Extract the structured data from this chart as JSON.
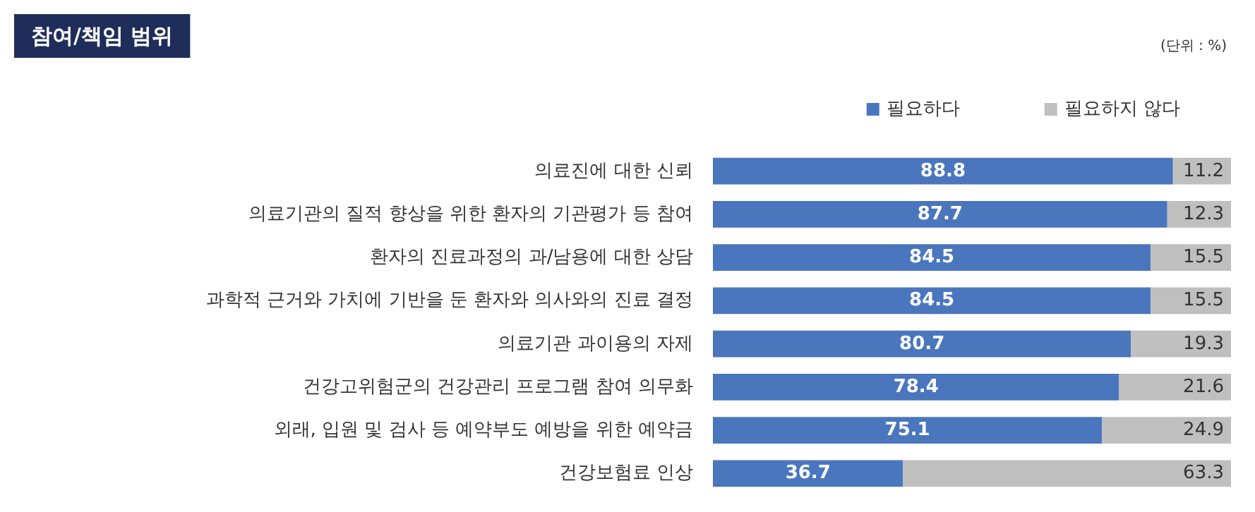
{
  "chart_data": {
    "type": "bar",
    "orientation": "horizontal",
    "stacked": true,
    "title": "참여/책임 범위",
    "annotations": [
      "(단위 : %)"
    ],
    "categories": [
      "의료진에 대한 신뢰",
      "의료기관의 질적 향상을 위한 환자의 기관평가 등 참여",
      "환자의 진료과정의 과/남용에 대한 상담",
      "과학적 근거와 가치에 기반을 둔 환자와 의사와의 진료 결정",
      "의료기관 과이용의 자제",
      "건강고위험군의 건강관리 프로그램 참여 의무화",
      "외래, 입원 및 검사 등 예약부도 예방을 위한 예약금",
      "건강보험료 인상"
    ],
    "series": [
      {
        "name": "필요하다",
        "color": "#4a76bd",
        "values": [
          88.8,
          87.7,
          84.5,
          84.5,
          80.7,
          78.4,
          75.1,
          36.7
        ]
      },
      {
        "name": "필요하지 않다",
        "color": "#bfbfbf",
        "values": [
          11.2,
          12.3,
          15.5,
          15.5,
          19.3,
          21.6,
          24.9,
          63.3
        ]
      }
    ],
    "xlim": [
      0,
      100
    ],
    "data_labels": true,
    "legend": "top right",
    "grid": false,
    "tick_labels": "y"
  }
}
